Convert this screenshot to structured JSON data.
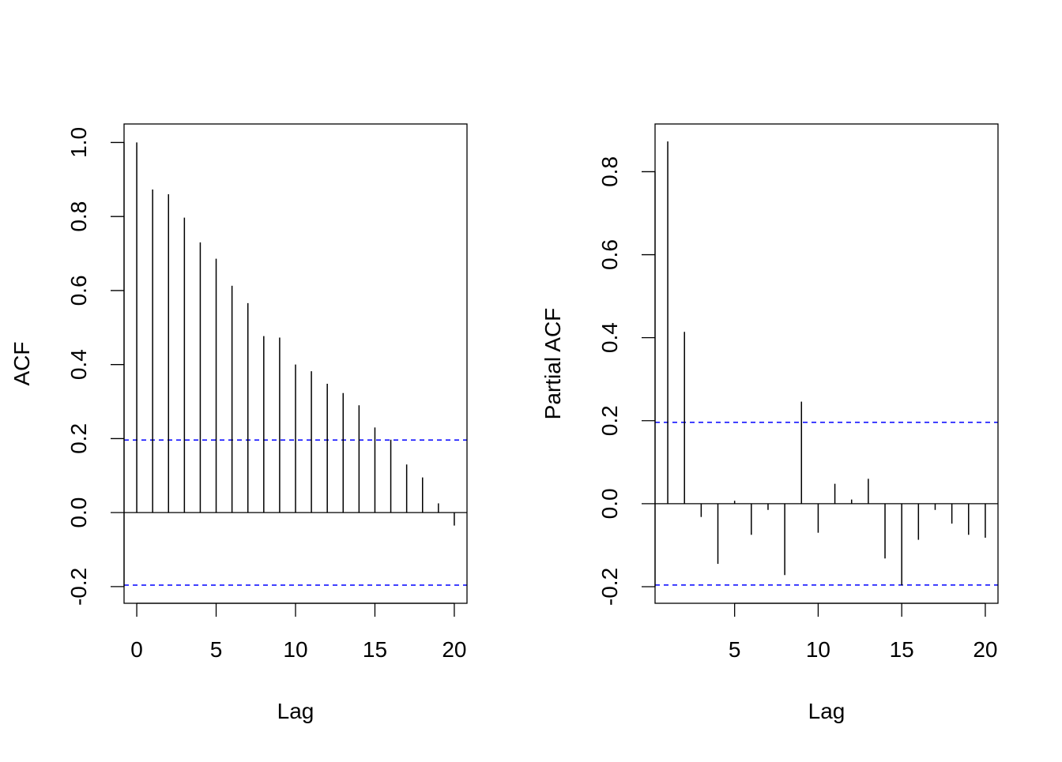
{
  "chart_data": [
    {
      "type": "bar",
      "xlabel": "Lag",
      "ylabel": "ACF",
      "xlim": [
        -0.8,
        20.8
      ],
      "ylim": [
        -0.245,
        1.05
      ],
      "xticks": [
        "0",
        "5",
        "10",
        "15",
        "20"
      ],
      "yticks": [
        "-0.2",
        "0.0",
        "0.2",
        "0.4",
        "0.6",
        "0.8",
        "1.0"
      ],
      "x": [
        0,
        1,
        2,
        3,
        4,
        5,
        6,
        7,
        8,
        9,
        10,
        11,
        12,
        13,
        14,
        15,
        16,
        17,
        18,
        19,
        20
      ],
      "values": [
        1.0,
        0.873,
        0.86,
        0.797,
        0.73,
        0.686,
        0.613,
        0.566,
        0.477,
        0.473,
        0.4,
        0.382,
        0.348,
        0.323,
        0.29,
        0.23,
        0.197,
        0.13,
        0.095,
        0.025,
        -0.035
      ],
      "ci_bound": 0.196,
      "ci_color": "#0000ff",
      "bar_color": "#000000"
    },
    {
      "type": "bar",
      "xlabel": "Lag",
      "ylabel": "Partial ACF",
      "xlim": [
        0.24,
        20.76
      ],
      "ylim": [
        -0.24,
        0.915
      ],
      "xticks": [
        "5",
        "10",
        "15",
        "20"
      ],
      "yticks": [
        "-0.2",
        "0.0",
        "0.2",
        "0.4",
        "0.6",
        "0.8"
      ],
      "x": [
        1,
        2,
        3,
        4,
        5,
        6,
        7,
        8,
        9,
        10,
        11,
        12,
        13,
        14,
        15,
        16,
        17,
        18,
        19,
        20
      ],
      "values": [
        0.873,
        0.414,
        -0.032,
        -0.145,
        0.007,
        -0.075,
        -0.015,
        -0.172,
        0.246,
        -0.07,
        0.048,
        0.01,
        0.06,
        -0.132,
        -0.197,
        -0.087,
        -0.015,
        -0.048,
        -0.075,
        -0.082
      ],
      "ci_bound": 0.196,
      "ci_color": "#0000ff",
      "bar_color": "#000000"
    }
  ]
}
